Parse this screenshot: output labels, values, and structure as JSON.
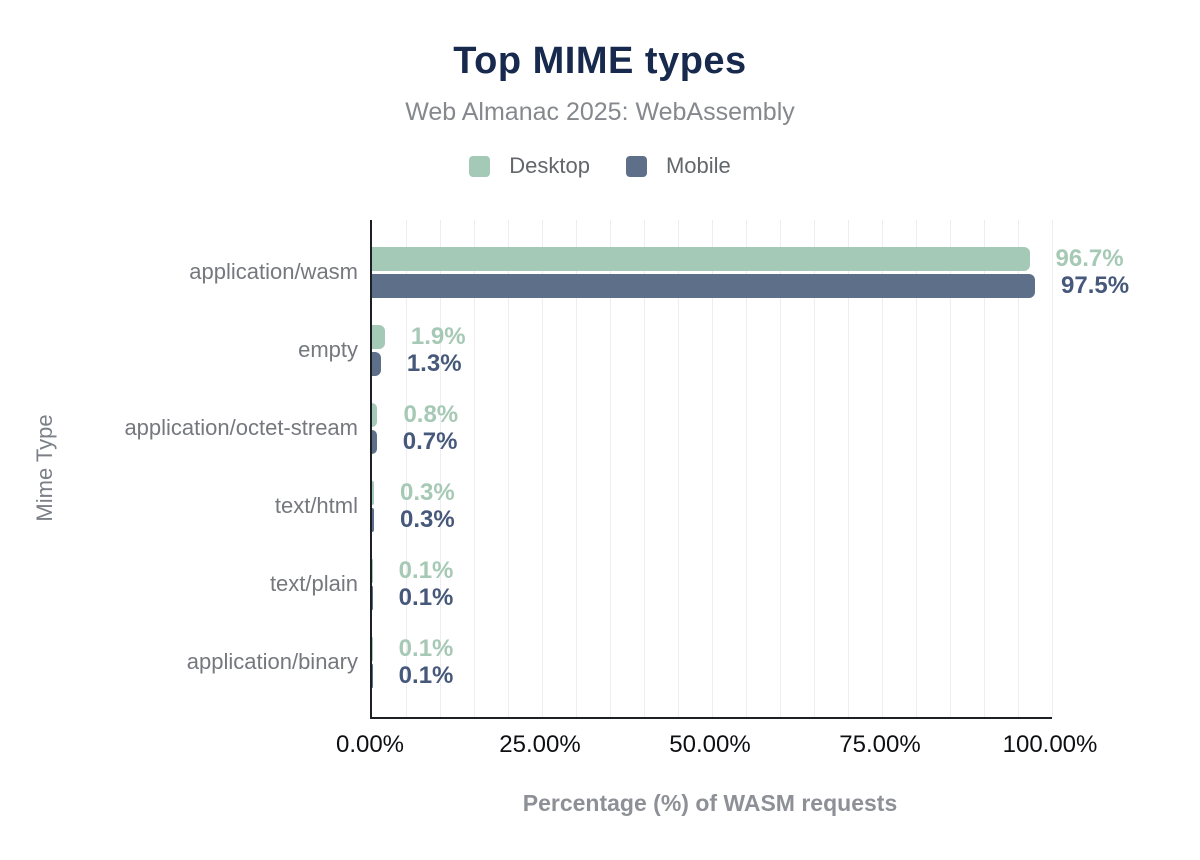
{
  "header": {
    "title": "Top MIME types",
    "subtitle": "Web Almanac 2025: WebAssembly"
  },
  "legend": {
    "items": [
      {
        "label": "Desktop",
        "color": "#a5c9b7"
      },
      {
        "label": "Mobile",
        "color": "#5e7089"
      }
    ]
  },
  "chart_data": {
    "type": "bar",
    "orientation": "horizontal",
    "title": "Top MIME types",
    "subtitle": "Web Almanac 2025: WebAssembly",
    "xlabel": "Percentage (%) of WASM requests",
    "ylabel": "Mime Type",
    "xlim": [
      0,
      100
    ],
    "grid": true,
    "gridline_step": 5,
    "legend_position": "top",
    "x_ticks": [
      {
        "value": 0,
        "label": "0.00%"
      },
      {
        "value": 25,
        "label": "25.00%"
      },
      {
        "value": 50,
        "label": "50.00%"
      },
      {
        "value": 75,
        "label": "75.00%"
      },
      {
        "value": 100,
        "label": "100.00%"
      }
    ],
    "categories": [
      "application/wasm",
      "empty",
      "application/octet-stream",
      "text/html",
      "text/plain",
      "application/binary"
    ],
    "series": [
      {
        "name": "Desktop",
        "color": "#a5c9b7",
        "label_color": "#a6c9b5",
        "values": [
          96.7,
          1.9,
          0.8,
          0.3,
          0.1,
          0.1
        ],
        "labels": [
          "96.7%",
          "1.9%",
          "0.8%",
          "0.3%",
          "0.1%",
          "0.1%"
        ]
      },
      {
        "name": "Mobile",
        "color": "#5e7089",
        "label_color": "#47597b",
        "values": [
          97.5,
          1.3,
          0.7,
          0.3,
          0.1,
          0.1
        ],
        "labels": [
          "97.5%",
          "1.3%",
          "0.7%",
          "0.3%",
          "0.1%",
          "0.1%"
        ]
      }
    ]
  },
  "colors": {
    "title": "#17294d",
    "subtitle": "#85888d",
    "category_label": "#75787e",
    "tick_label": "#0e0f12",
    "axis_line": "#1c1f24",
    "gridline": "#ededf2",
    "axis_title": "#8d9096",
    "legend_text": "#63666b"
  }
}
